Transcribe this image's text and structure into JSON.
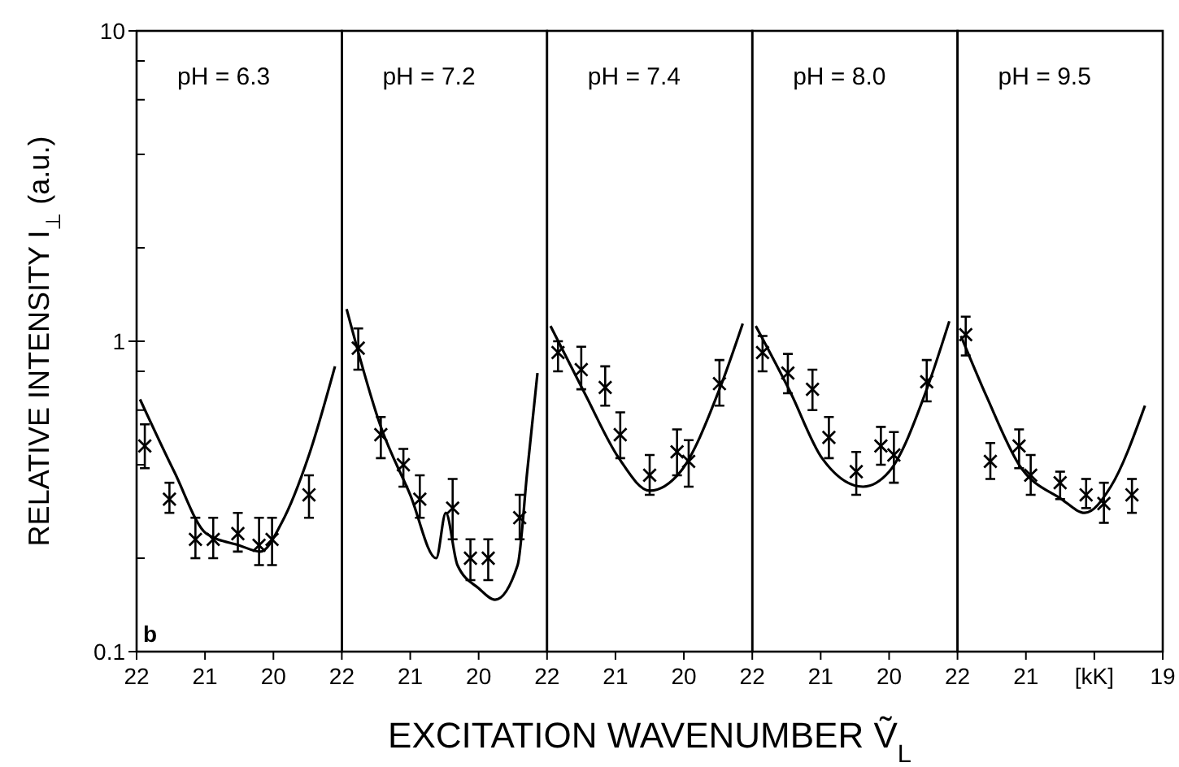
{
  "chart_data": [
    {
      "type": "scatter",
      "title": "pH = 6.3",
      "ylabel": "RELATIVE INTENSITY I$_{⊥}$ (a.u.)",
      "annotations": [
        "b"
      ],
      "log": "y",
      "line_style": "solid",
      "xlim": [
        22,
        19
      ],
      "xticks": [
        22,
        21,
        20
      ],
      "ylim": [
        0.1,
        10
      ],
      "yticks": [
        0.1,
        {
          "value": 0.2,
          "label": null
        },
        {
          "value": 0.4,
          "label": null
        },
        {
          "value": 0.6,
          "label": null
        },
        {
          "value": 0.8,
          "label": null
        },
        1,
        {
          "value": 2,
          "label": null
        },
        {
          "value": 4,
          "label": null
        },
        {
          "value": 6,
          "label": null
        },
        {
          "value": 8,
          "label": null
        },
        10
      ],
      "series": [
        {
          "marker": "cross",
          "color": "#000000",
          "x": [
            21.88,
            21.52,
            21.14,
            20.88,
            20.52,
            20.21,
            20.02,
            19.48
          ],
          "values": [
            0.46,
            0.31,
            0.23,
            0.23,
            0.24,
            0.22,
            0.23,
            0.32
          ],
          "errors": [
            [
              0.39,
              0.54
            ],
            [
              0.28,
              0.35
            ],
            [
              0.2,
              0.27
            ],
            [
              0.2,
              0.27
            ],
            [
              0.21,
              0.28
            ],
            [
              0.19,
              0.27
            ],
            [
              0.19,
              0.27
            ],
            [
              0.27,
              0.37
            ]
          ]
        },
        {
          "type": "line",
          "color": "#000000",
          "x": [
            21.95,
            21.45,
            20.98,
            20.5,
            20.19,
            19.88,
            19.48,
            19.1
          ],
          "values": [
            0.65,
            0.38,
            0.24,
            0.22,
            0.21,
            0.26,
            0.43,
            0.83
          ]
        }
      ]
    },
    {
      "type": "scatter",
      "title": "pH = 7.2",
      "log": "y",
      "line_style": "solid",
      "tick_labels": "x",
      "xlim": [
        22,
        19
      ],
      "xticks": [
        22,
        21,
        20
      ],
      "ylim": [
        0.1,
        10
      ],
      "series": [
        {
          "marker": "cross",
          "color": "#000000",
          "x": [
            21.76,
            21.43,
            21.1,
            20.86,
            20.38,
            20.12,
            19.86,
            19.4
          ],
          "values": [
            0.95,
            0.5,
            0.4,
            0.31,
            0.29,
            0.2,
            0.2,
            0.27
          ],
          "errors": [
            [
              0.81,
              1.1
            ],
            [
              0.42,
              0.57
            ],
            [
              0.34,
              0.45
            ],
            [
              0.27,
              0.37
            ],
            [
              0.23,
              0.36
            ],
            [
              0.17,
              0.23
            ],
            [
              0.17,
              0.23
            ],
            [
              0.23,
              0.32
            ]
          ]
        },
        {
          "type": "line",
          "color": "#000000",
          "x": [
            21.93,
            21.43,
            21.0,
            20.62,
            20.48,
            20.31,
            20.0,
            19.76,
            19.43,
            19.29,
            19.14
          ],
          "values": [
            1.27,
            0.53,
            0.32,
            0.2,
            0.28,
            0.19,
            0.16,
            0.147,
            0.19,
            0.38,
            0.79
          ]
        }
      ]
    },
    {
      "type": "scatter",
      "title": "pH = 7.4",
      "xlabel": "EXCITATION WAVENUMBER Ṽ$_{L}$",
      "log": "y",
      "line_style": "solid",
      "tick_labels": "x",
      "xlim": [
        22,
        19
      ],
      "xticks": [
        22,
        21,
        20
      ],
      "ylim": [
        0.1,
        10
      ],
      "series": [
        {
          "marker": "cross",
          "color": "#000000",
          "x": [
            21.84,
            21.5,
            21.15,
            20.93,
            20.5,
            20.1,
            19.93,
            19.48
          ],
          "values": [
            0.92,
            0.81,
            0.71,
            0.5,
            0.37,
            0.44,
            0.41,
            0.73
          ],
          "errors": [
            [
              0.8,
              1.0
            ],
            [
              0.7,
              0.96
            ],
            [
              0.62,
              0.83
            ],
            [
              0.42,
              0.59
            ],
            [
              0.32,
              0.43
            ],
            [
              0.37,
              0.52
            ],
            [
              0.34,
              0.48
            ],
            [
              0.62,
              0.87
            ]
          ]
        },
        {
          "type": "line",
          "color": "#000000",
          "x": [
            21.95,
            21.45,
            20.95,
            20.5,
            20.05,
            19.48,
            19.14
          ],
          "values": [
            1.12,
            0.68,
            0.42,
            0.33,
            0.38,
            0.7,
            1.14
          ]
        }
      ]
    },
    {
      "type": "scatter",
      "title": "pH = 8.0",
      "log": "y",
      "line_style": "solid",
      "tick_labels": "x",
      "xlim": [
        22,
        19
      ],
      "xticks": [
        22,
        21,
        20
      ],
      "ylim": [
        0.1,
        10
      ],
      "series": [
        {
          "marker": "cross",
          "color": "#000000",
          "x": [
            21.85,
            21.48,
            21.12,
            20.88,
            20.48,
            20.12,
            19.93,
            19.45
          ],
          "values": [
            0.92,
            0.79,
            0.7,
            0.49,
            0.38,
            0.46,
            0.43,
            0.74
          ],
          "errors": [
            [
              0.8,
              1.04
            ],
            [
              0.68,
              0.91
            ],
            [
              0.6,
              0.81
            ],
            [
              0.42,
              0.57
            ],
            [
              0.32,
              0.44
            ],
            [
              0.4,
              0.53
            ],
            [
              0.35,
              0.51
            ],
            [
              0.64,
              0.87
            ]
          ]
        },
        {
          "type": "line",
          "color": "#000000",
          "x": [
            21.95,
            21.45,
            20.98,
            20.38,
            20.0,
            19.45,
            19.12
          ],
          "values": [
            1.12,
            0.69,
            0.42,
            0.34,
            0.38,
            0.7,
            1.16
          ]
        }
      ]
    },
    {
      "type": "scatter",
      "title": "pH = 9.5",
      "log": "y",
      "line_style": "solid",
      "tick_labels": "x",
      "xlim": [
        22,
        19
      ],
      "xticks": [
        22,
        21,
        {
          "value": 20,
          "label": "[kK]"
        },
        19
      ],
      "ylim": [
        0.1,
        10
      ],
      "series": [
        {
          "marker": "cross",
          "color": "#000000",
          "x": [
            21.88,
            21.52,
            21.1,
            20.93,
            20.5,
            20.12,
            19.86,
            19.45
          ],
          "values": [
            1.05,
            0.41,
            0.46,
            0.37,
            0.35,
            0.32,
            0.3,
            0.32
          ],
          "errors": [
            [
              0.9,
              1.2
            ],
            [
              0.36,
              0.47
            ],
            [
              0.39,
              0.52
            ],
            [
              0.32,
              0.43
            ],
            [
              0.31,
              0.38
            ],
            [
              0.29,
              0.36
            ],
            [
              0.26,
              0.35
            ],
            [
              0.28,
              0.36
            ]
          ]
        },
        {
          "type": "line",
          "color": "#000000",
          "x": [
            21.95,
            21.57,
            21.1,
            20.48,
            20.14,
            19.76,
            19.26
          ],
          "values": [
            1.04,
            0.66,
            0.4,
            0.31,
            0.28,
            0.34,
            0.62
          ]
        }
      ]
    }
  ]
}
